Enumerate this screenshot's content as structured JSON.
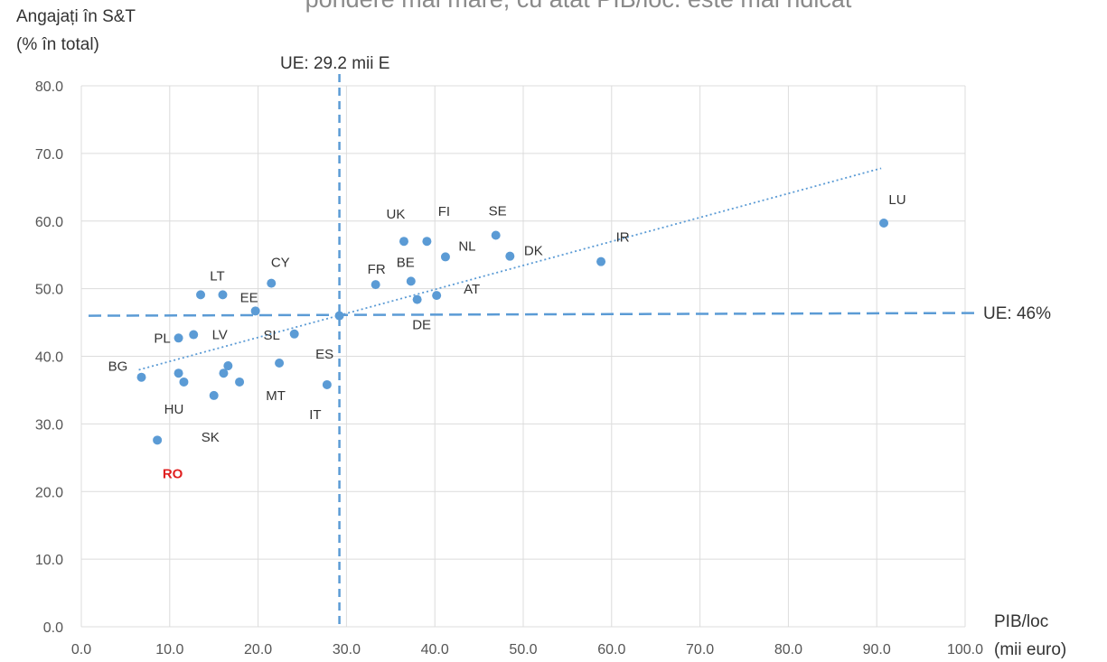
{
  "chart_data": {
    "type": "scatter",
    "title": "pondere mai mare, cu atât PIB/loc. este mai ridicat",
    "ylabel_line1": "Angajați în S&T",
    "ylabel_line2": "(% în total)",
    "xlabel_line1": "PIB/loc",
    "xlabel_line2": "(mii euro)",
    "xlim": [
      0,
      100
    ],
    "ylim": [
      0,
      80
    ],
    "x_ticks": [
      "0.0",
      "10.0",
      "20.0",
      "30.0",
      "40.0",
      "50.0",
      "60.0",
      "70.0",
      "80.0",
      "90.0",
      "100.0"
    ],
    "y_ticks": [
      "0.0",
      "10.0",
      "20.0",
      "30.0",
      "40.0",
      "50.0",
      "60.0",
      "70.0",
      "80.0"
    ],
    "grid": true,
    "vref": {
      "x": 29.2,
      "label": "UE: 29.2 mii E"
    },
    "href": {
      "y": 46,
      "label": "UE: 46%"
    },
    "trendline": {
      "x": [
        6.5,
        90.5
      ],
      "y": [
        38.0,
        67.8
      ]
    },
    "point_color": "#5b9bd5",
    "highlight_color": "#e02020",
    "points": [
      {
        "label": "LU",
        "x": 90.8,
        "y": 59.7
      },
      {
        "label": "IR",
        "x": 58.8,
        "y": 54.0
      },
      {
        "label": "DK",
        "x": 48.5,
        "y": 54.8
      },
      {
        "label": "SE",
        "x": 46.9,
        "y": 57.9
      },
      {
        "label": "NL",
        "x": 41.2,
        "y": 54.7
      },
      {
        "label": "FI",
        "x": 39.1,
        "y": 57.0
      },
      {
        "label": "UK",
        "x": 36.5,
        "y": 57.0
      },
      {
        "label": "AT",
        "x": 40.2,
        "y": 49.0
      },
      {
        "label": "DE",
        "x": 38.0,
        "y": 48.4
      },
      {
        "label": "BE",
        "x": 37.3,
        "y": 51.1
      },
      {
        "label": "FR",
        "x": 33.3,
        "y": 50.6
      },
      {
        "label": "",
        "x": 29.2,
        "y": 46.0
      },
      {
        "label": "IT",
        "x": 27.8,
        "y": 35.8
      },
      {
        "label": "SL",
        "x": 24.1,
        "y": 43.3
      },
      {
        "label": "ES",
        "x": 22.4,
        "y": 39.0
      },
      {
        "label": "CY",
        "x": 21.5,
        "y": 50.8
      },
      {
        "label": "EE",
        "x": 19.7,
        "y": 46.7
      },
      {
        "label": "MT",
        "x": 17.9,
        "y": 36.2
      },
      {
        "label": "",
        "x": 16.6,
        "y": 38.6
      },
      {
        "label": "",
        "x": 16.1,
        "y": 37.5
      },
      {
        "label": "LT",
        "x": 16.0,
        "y": 49.1
      },
      {
        "label": "SK",
        "x": 15.0,
        "y": 34.2
      },
      {
        "label": "",
        "x": 13.5,
        "y": 49.1
      },
      {
        "label": "LV",
        "x": 12.7,
        "y": 43.2
      },
      {
        "label": "HU",
        "x": 11.6,
        "y": 36.2
      },
      {
        "label": "",
        "x": 11.0,
        "y": 37.5
      },
      {
        "label": "PL",
        "x": 11.0,
        "y": 42.7
      },
      {
        "label": "RO",
        "x": 8.6,
        "y": 27.6,
        "highlight": true
      },
      {
        "label": "BG",
        "x": 6.8,
        "y": 36.9
      }
    ]
  }
}
